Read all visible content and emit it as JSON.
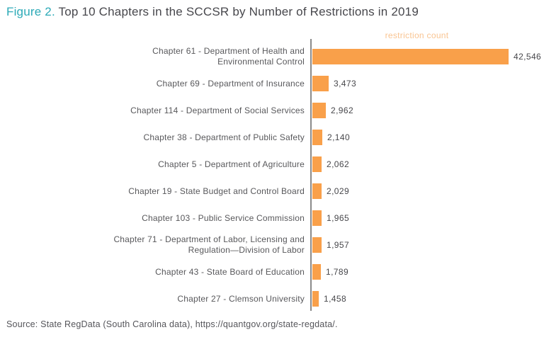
{
  "title": {
    "figure_label": "Figure 2.",
    "text": " Top 10 Chapters in the SCCSR by Number of Restrictions in 2019"
  },
  "source": "Source: State RegData (South Carolina data), https://quantgov.org/state-regdata/.",
  "colors": {
    "bar": "#F9A04A",
    "legend_text": "#F9C491",
    "figure_label": "#2CAAB7",
    "title_text": "#47474C",
    "category_label": "#58585B",
    "value_label": "#47474B",
    "source_text": "#55555A",
    "axis_line": "#8A8A8A"
  },
  "chart_data": {
    "type": "bar",
    "orientation": "horizontal",
    "title": "Top 10 Chapters in the SCCSR by Number of Restrictions in 2019",
    "legend": [
      "restriction count"
    ],
    "legend_position": "top",
    "grid": false,
    "xlim": [
      0,
      45000
    ],
    "categories": [
      "Chapter 61 - Department of Health and Environmental Control",
      "Chapter 69 - Department of Insurance",
      "Chapter 114 - Department of Social Services",
      "Chapter 38 - Department of Public Safety",
      "Chapter 5 - Department of Agriculture",
      "Chapter 19 - State Budget and Control Board",
      "Chapter 103 - Public Service Commission",
      "Chapter 71 - Department of Labor, Licensing and Regulation—Division of Labor",
      "Chapter 43 - State Board of Education",
      "Chapter 27 - Clemson University"
    ],
    "label_lines": [
      [
        "Chapter 61 - Department of Health and",
        "Environmental Control"
      ],
      [
        "Chapter 69 - Department of Insurance"
      ],
      [
        "Chapter 114 - Department of Social Services"
      ],
      [
        "Chapter 38 - Department of Public Safety"
      ],
      [
        "Chapter 5 - Department of Agriculture"
      ],
      [
        "Chapter 19 - State Budget and Control Board"
      ],
      [
        "Chapter 103 - Public Service Commission"
      ],
      [
        "Chapter 71 - Department of Labor, Licensing and",
        "Regulation—Division of Labor"
      ],
      [
        "Chapter 43 - State Board of Education"
      ],
      [
        "Chapter 27 - Clemson University"
      ]
    ],
    "values": [
      42546,
      3473,
      2962,
      2140,
      2062,
      2029,
      1965,
      1957,
      1789,
      1458
    ],
    "value_labels": [
      "42,546",
      "3,473",
      "2,962",
      "2,140",
      "2,062",
      "2,029",
      "1,965",
      "1,957",
      "1,789",
      "1,458"
    ]
  }
}
